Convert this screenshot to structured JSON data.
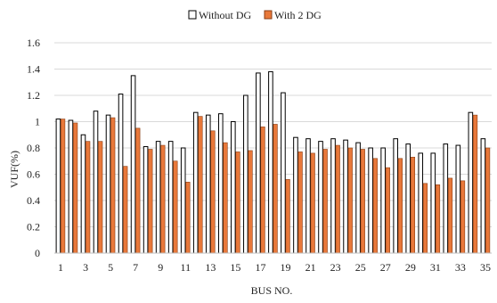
{
  "chart_data": {
    "type": "bar",
    "title": "",
    "xlabel": "BUS NO.",
    "ylabel": "VUF(%)",
    "ylim": [
      0,
      1.6
    ],
    "yticks": [
      "0",
      "0.2",
      "0.4",
      "0.6",
      "0.8",
      "1",
      "1.2",
      "1.4",
      "1.6"
    ],
    "grid": true,
    "legend_position": "top-center",
    "categories": [
      "1",
      "2",
      "3",
      "4",
      "5",
      "6",
      "7",
      "8",
      "9",
      "10",
      "11",
      "12",
      "13",
      "14",
      "15",
      "16",
      "17",
      "18",
      "19",
      "20",
      "21",
      "22",
      "23",
      "24",
      "25",
      "26",
      "27",
      "28",
      "29",
      "30",
      "31",
      "32",
      "33",
      "34",
      "35"
    ],
    "xtick_labels": [
      "1",
      "3",
      "5",
      "7",
      "9",
      "11",
      "13",
      "15",
      "17",
      "19",
      "21",
      "23",
      "25",
      "27",
      "29",
      "31",
      "33",
      "35"
    ],
    "series": [
      {
        "name": "Without DG",
        "color": "#ffffff",
        "stroke": "#000000",
        "values": [
          1.02,
          1.01,
          0.9,
          1.08,
          1.05,
          1.21,
          1.35,
          0.81,
          0.85,
          0.85,
          0.8,
          1.07,
          1.05,
          1.06,
          1.0,
          1.2,
          1.37,
          1.38,
          1.22,
          0.88,
          0.87,
          0.85,
          0.87,
          0.86,
          0.84,
          0.8,
          0.8,
          0.87,
          0.83,
          0.76,
          0.76,
          0.83,
          0.82,
          1.07,
          0.87
        ]
      },
      {
        "name": "With 2 DG",
        "color": "#e8783a",
        "stroke": "#8a3e15",
        "values": [
          1.02,
          0.99,
          0.85,
          0.85,
          1.03,
          0.66,
          0.95,
          0.79,
          0.82,
          0.7,
          0.54,
          1.04,
          0.93,
          0.84,
          0.77,
          0.78,
          0.96,
          0.98,
          0.56,
          0.77,
          0.76,
          0.79,
          0.82,
          0.8,
          0.79,
          0.72,
          0.65,
          0.72,
          0.73,
          0.53,
          0.52,
          0.57,
          0.55,
          1.05,
          0.8
        ]
      }
    ]
  }
}
